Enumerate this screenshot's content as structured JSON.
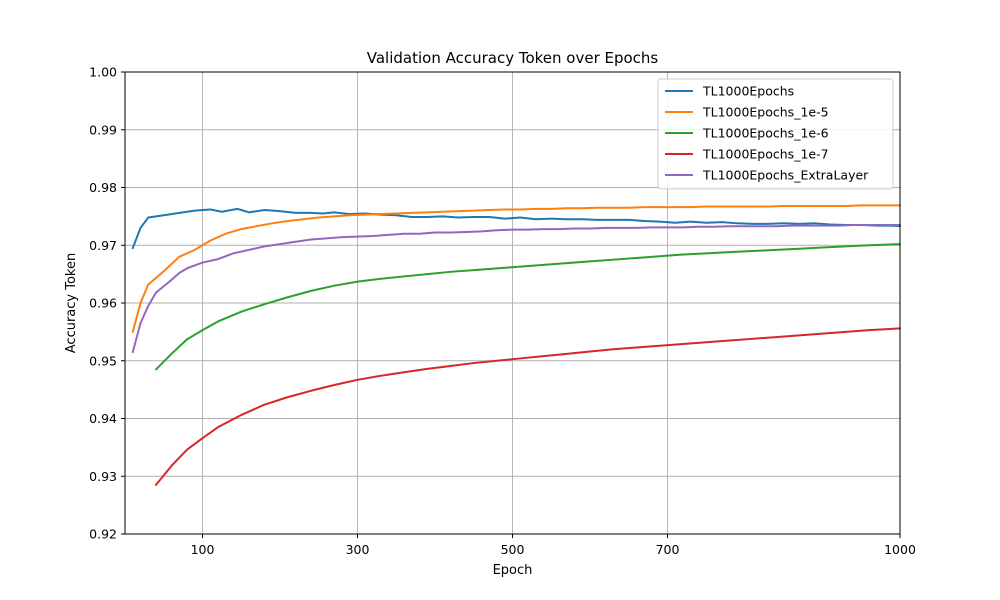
{
  "chart_data": {
    "type": "line",
    "title": "Validation Accuracy Token over Epochs",
    "xlabel": "Epoch",
    "ylabel": "Accuracy Token",
    "xlim": [
      0,
      1000
    ],
    "ylim": [
      0.92,
      1.0
    ],
    "xticks": [
      100,
      300,
      500,
      700,
      1000
    ],
    "yticks": [
      0.92,
      0.93,
      0.94,
      0.95,
      0.96,
      0.97,
      0.98,
      0.99,
      1.0
    ],
    "grid": true,
    "legend_position": "upper-right",
    "series": [
      {
        "name": "TL1000Epochs",
        "color": "#1f77b4",
        "points": [
          [
            10,
            0.9695
          ],
          [
            20,
            0.973
          ],
          [
            30,
            0.9748
          ],
          [
            50,
            0.9752
          ],
          [
            70,
            0.9756
          ],
          [
            90,
            0.976
          ],
          [
            110,
            0.9762
          ],
          [
            125,
            0.9758
          ],
          [
            145,
            0.9763
          ],
          [
            160,
            0.9757
          ],
          [
            180,
            0.9761
          ],
          [
            200,
            0.9759
          ],
          [
            220,
            0.9756
          ],
          [
            240,
            0.9756
          ],
          [
            255,
            0.9755
          ],
          [
            270,
            0.9757
          ],
          [
            290,
            0.9754
          ],
          [
            310,
            0.9755
          ],
          [
            330,
            0.9753
          ],
          [
            350,
            0.9752
          ],
          [
            370,
            0.9749
          ],
          [
            390,
            0.9749
          ],
          [
            410,
            0.975
          ],
          [
            430,
            0.9748
          ],
          [
            450,
            0.9749
          ],
          [
            470,
            0.9749
          ],
          [
            490,
            0.9746
          ],
          [
            510,
            0.9748
          ],
          [
            530,
            0.9745
          ],
          [
            550,
            0.9746
          ],
          [
            570,
            0.9745
          ],
          [
            590,
            0.9745
          ],
          [
            610,
            0.9744
          ],
          [
            630,
            0.9744
          ],
          [
            650,
            0.9744
          ],
          [
            670,
            0.9742
          ],
          [
            690,
            0.9741
          ],
          [
            710,
            0.9739
          ],
          [
            730,
            0.9741
          ],
          [
            750,
            0.9739
          ],
          [
            770,
            0.974
          ],
          [
            790,
            0.9738
          ],
          [
            810,
            0.9737
          ],
          [
            830,
            0.9737
          ],
          [
            850,
            0.9738
          ],
          [
            870,
            0.9737
          ],
          [
            890,
            0.9738
          ],
          [
            910,
            0.9736
          ],
          [
            930,
            0.9735
          ],
          [
            950,
            0.9735
          ],
          [
            970,
            0.9734
          ],
          [
            990,
            0.9734
          ],
          [
            1000,
            0.9733
          ]
        ]
      },
      {
        "name": "TL1000Epochs_1e-5",
        "color": "#ff7f0e",
        "points": [
          [
            10,
            0.955
          ],
          [
            20,
            0.96
          ],
          [
            30,
            0.9632
          ],
          [
            50,
            0.9655
          ],
          [
            70,
            0.968
          ],
          [
            90,
            0.9692
          ],
          [
            110,
            0.9708
          ],
          [
            130,
            0.972
          ],
          [
            150,
            0.9728
          ],
          [
            170,
            0.9733
          ],
          [
            190,
            0.9738
          ],
          [
            210,
            0.9742
          ],
          [
            230,
            0.9745
          ],
          [
            250,
            0.9748
          ],
          [
            270,
            0.975
          ],
          [
            290,
            0.9752
          ],
          [
            310,
            0.9753
          ],
          [
            330,
            0.9754
          ],
          [
            350,
            0.9755
          ],
          [
            370,
            0.9756
          ],
          [
            390,
            0.9757
          ],
          [
            410,
            0.9758
          ],
          [
            430,
            0.9759
          ],
          [
            450,
            0.976
          ],
          [
            470,
            0.9761
          ],
          [
            490,
            0.9762
          ],
          [
            510,
            0.9762
          ],
          [
            530,
            0.9763
          ],
          [
            550,
            0.9763
          ],
          [
            570,
            0.9764
          ],
          [
            590,
            0.9764
          ],
          [
            610,
            0.9765
          ],
          [
            630,
            0.9765
          ],
          [
            650,
            0.9765
          ],
          [
            670,
            0.9766
          ],
          [
            690,
            0.9766
          ],
          [
            710,
            0.9766
          ],
          [
            730,
            0.9766
          ],
          [
            750,
            0.9767
          ],
          [
            770,
            0.9767
          ],
          [
            790,
            0.9767
          ],
          [
            810,
            0.9767
          ],
          [
            830,
            0.9767
          ],
          [
            850,
            0.9768
          ],
          [
            870,
            0.9768
          ],
          [
            890,
            0.9768
          ],
          [
            910,
            0.9768
          ],
          [
            930,
            0.9768
          ],
          [
            950,
            0.9769
          ],
          [
            970,
            0.9769
          ],
          [
            990,
            0.9769
          ],
          [
            1000,
            0.9769
          ]
        ]
      },
      {
        "name": "TL1000Epochs_1e-6",
        "color": "#2ca02c",
        "points": [
          [
            40,
            0.9485
          ],
          [
            60,
            0.9512
          ],
          [
            80,
            0.9537
          ],
          [
            100,
            0.9553
          ],
          [
            120,
            0.9568
          ],
          [
            150,
            0.9585
          ],
          [
            180,
            0.9598
          ],
          [
            210,
            0.961
          ],
          [
            240,
            0.9621
          ],
          [
            270,
            0.963
          ],
          [
            300,
            0.9637
          ],
          [
            330,
            0.9642
          ],
          [
            360,
            0.9646
          ],
          [
            390,
            0.965
          ],
          [
            420,
            0.9654
          ],
          [
            450,
            0.9657
          ],
          [
            480,
            0.966
          ],
          [
            510,
            0.9663
          ],
          [
            540,
            0.9666
          ],
          [
            570,
            0.9669
          ],
          [
            600,
            0.9672
          ],
          [
            630,
            0.9675
          ],
          [
            660,
            0.9678
          ],
          [
            690,
            0.9681
          ],
          [
            720,
            0.9684
          ],
          [
            750,
            0.9686
          ],
          [
            780,
            0.9688
          ],
          [
            810,
            0.969
          ],
          [
            840,
            0.9692
          ],
          [
            870,
            0.9694
          ],
          [
            900,
            0.9696
          ],
          [
            930,
            0.9698
          ],
          [
            960,
            0.97
          ],
          [
            1000,
            0.9702
          ]
        ]
      },
      {
        "name": "TL1000Epochs_1e-7",
        "color": "#d62728",
        "points": [
          [
            40,
            0.9285
          ],
          [
            60,
            0.9318
          ],
          [
            80,
            0.9346
          ],
          [
            100,
            0.9366
          ],
          [
            120,
            0.9385
          ],
          [
            150,
            0.9406
          ],
          [
            180,
            0.9424
          ],
          [
            210,
            0.9437
          ],
          [
            240,
            0.9448
          ],
          [
            270,
            0.9458
          ],
          [
            300,
            0.9467
          ],
          [
            330,
            0.9474
          ],
          [
            360,
            0.948
          ],
          [
            390,
            0.9486
          ],
          [
            420,
            0.9491
          ],
          [
            450,
            0.9496
          ],
          [
            480,
            0.95
          ],
          [
            510,
            0.9504
          ],
          [
            540,
            0.9508
          ],
          [
            570,
            0.9512
          ],
          [
            600,
            0.9516
          ],
          [
            630,
            0.952
          ],
          [
            660,
            0.9523
          ],
          [
            690,
            0.9526
          ],
          [
            720,
            0.9529
          ],
          [
            750,
            0.9532
          ],
          [
            780,
            0.9535
          ],
          [
            810,
            0.9538
          ],
          [
            840,
            0.9541
          ],
          [
            870,
            0.9544
          ],
          [
            900,
            0.9547
          ],
          [
            930,
            0.955
          ],
          [
            960,
            0.9553
          ],
          [
            1000,
            0.9556
          ]
        ]
      },
      {
        "name": "TL1000Epochs_ExtraLayer",
        "color": "#9467bd",
        "points": [
          [
            10,
            0.9515
          ],
          [
            20,
            0.9565
          ],
          [
            30,
            0.9595
          ],
          [
            40,
            0.9618
          ],
          [
            60,
            0.964
          ],
          [
            70,
            0.9652
          ],
          [
            80,
            0.966
          ],
          [
            100,
            0.967
          ],
          [
            120,
            0.9676
          ],
          [
            140,
            0.9686
          ],
          [
            160,
            0.9692
          ],
          [
            180,
            0.9698
          ],
          [
            200,
            0.9702
          ],
          [
            220,
            0.9706
          ],
          [
            240,
            0.971
          ],
          [
            260,
            0.9712
          ],
          [
            280,
            0.9714
          ],
          [
            300,
            0.9715
          ],
          [
            320,
            0.9716
          ],
          [
            340,
            0.9718
          ],
          [
            360,
            0.972
          ],
          [
            380,
            0.972
          ],
          [
            400,
            0.9722
          ],
          [
            420,
            0.9722
          ],
          [
            440,
            0.9723
          ],
          [
            460,
            0.9724
          ],
          [
            480,
            0.9726
          ],
          [
            500,
            0.9727
          ],
          [
            520,
            0.9727
          ],
          [
            540,
            0.9728
          ],
          [
            560,
            0.9728
          ],
          [
            580,
            0.9729
          ],
          [
            600,
            0.9729
          ],
          [
            620,
            0.973
          ],
          [
            640,
            0.973
          ],
          [
            660,
            0.973
          ],
          [
            680,
            0.9731
          ],
          [
            700,
            0.9731
          ],
          [
            720,
            0.9731
          ],
          [
            740,
            0.9732
          ],
          [
            760,
            0.9732
          ],
          [
            780,
            0.9733
          ],
          [
            800,
            0.9733
          ],
          [
            820,
            0.9733
          ],
          [
            840,
            0.9733
          ],
          [
            860,
            0.9734
          ],
          [
            880,
            0.9734
          ],
          [
            900,
            0.9734
          ],
          [
            920,
            0.9734
          ],
          [
            940,
            0.9735
          ],
          [
            960,
            0.9735
          ],
          [
            980,
            0.9735
          ],
          [
            1000,
            0.9735
          ]
        ]
      }
    ]
  }
}
